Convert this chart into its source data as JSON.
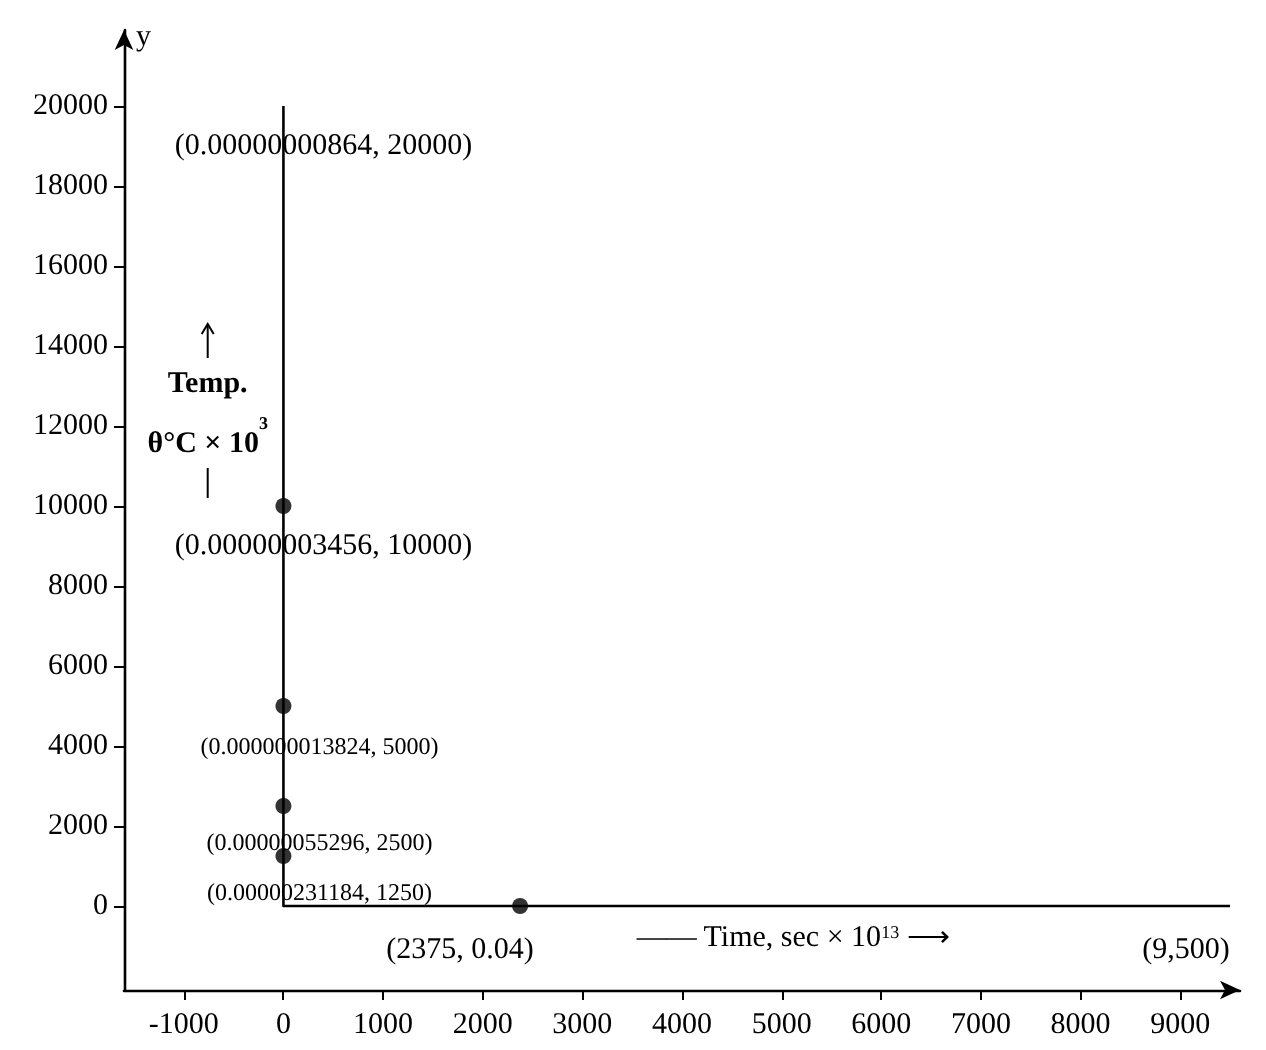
{
  "chart_data": {
    "type": "line",
    "xlabel": "—— Time, sec × 10$^{13}$ ⟶",
    "ylabel": "y",
    "xlim": [
      -1600,
      9600
    ],
    "xticks": [
      -1000,
      0,
      1000,
      2000,
      3000,
      4000,
      5000,
      6000,
      7000,
      8000,
      9000
    ],
    "ylim": [
      -2100,
      21900
    ],
    "yticks": [
      0,
      2000,
      4000,
      6000,
      8000,
      10000,
      12000,
      14000,
      16000,
      18000,
      20000
    ],
    "grid": false,
    "series": [
      {
        "color": "#000000",
        "marker": "none",
        "x": [
          8.64e-09,
          3.456e-08,
          1.3824e-08,
          5.5296e-07,
          2.31184e-06,
          0,
          2375,
          9500
        ],
        "values": [
          20000,
          10000,
          5000,
          2500,
          1250,
          0,
          0.04,
          0
        ]
      },
      {
        "type": "scatter",
        "color": "#000000",
        "marker": "circle",
        "x": [
          3.456e-08,
          1.3824e-08,
          5.5296e-07,
          2.31184e-06,
          2375
        ],
        "values": [
          10000,
          5000,
          2500,
          1250,
          0.04
        ]
      }
    ],
    "annotations": [
      {
        "text": "(0.00000000864, 20000)",
        "x": 8.64e-09,
        "y": 20000
      },
      {
        "text": "(0.00000003456, 10000)",
        "x": 3.456e-08,
        "y": 10000
      },
      {
        "text": "(0.000000013824, 5000)",
        "x": 1.3824e-08,
        "y": 5000
      },
      {
        "text": "(0.00000055296, 2500)",
        "x": 5.5296e-07,
        "y": 2500
      },
      {
        "text": "(0.00000231184, 1250)",
        "x": 2.31184e-06,
        "y": 1250
      },
      {
        "text": "(2375, 0.04)",
        "x": 2375,
        "y": 0.04
      },
      {
        "text": "(9,500)",
        "x": 9500,
        "y": 0
      },
      "Temp.\nθ°C × 10$^{3}$"
    ]
  }
}
